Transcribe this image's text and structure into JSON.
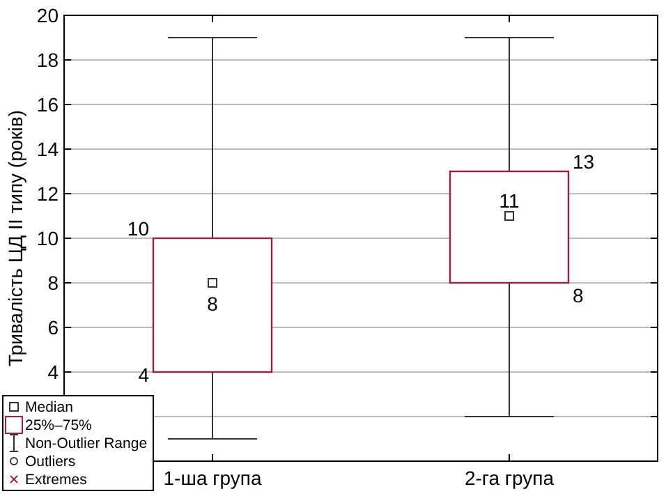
{
  "chart_data": {
    "type": "box",
    "ylabel": "Тривалість ЦД ІІ типу (років)",
    "categories": [
      "1-ша група",
      "2-га група"
    ],
    "series": [
      {
        "color": "#a0203c",
        "boxes": [
          {
            "low": 1,
            "q1": 4,
            "median": 8,
            "q3": 10,
            "high": 19
          },
          {
            "low": 2,
            "q1": 8,
            "median": 11,
            "q3": 13,
            "high": 19
          }
        ]
      }
    ],
    "ylim": [
      0,
      20
    ],
    "yticks": [
      {
        "value": 0,
        "label": null
      },
      {
        "value": 2,
        "label": null
      },
      4,
      6,
      8,
      10,
      12,
      14,
      16,
      18,
      20
    ],
    "grid": "y",
    "annotations": [
      "Median",
      "25%–75%",
      "Non-Outlier Range",
      "Outliers",
      "Extremes",
      "10",
      "8",
      "4",
      "13",
      "11",
      "8"
    ]
  }
}
